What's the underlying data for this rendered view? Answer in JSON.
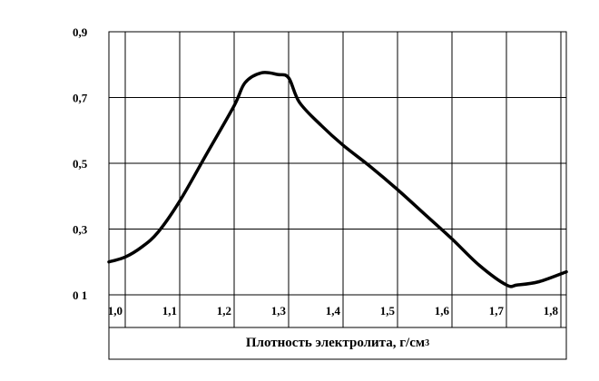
{
  "chart_data": {
    "type": "line",
    "xlabel": "Плотность электролита, г/см",
    "xlabel_sup": "3",
    "ylabel": "",
    "xlim": [
      0.97,
      1.81
    ],
    "ylim": [
      0.1,
      0.9
    ],
    "x_ticks": [
      {
        "value": 1.0,
        "label": "1,0"
      },
      {
        "value": 1.1,
        "label": "1,1"
      },
      {
        "value": 1.2,
        "label": "1,2"
      },
      {
        "value": 1.3,
        "label": "1,3"
      },
      {
        "value": 1.4,
        "label": "1,4"
      },
      {
        "value": 1.5,
        "label": "1,5"
      },
      {
        "value": 1.6,
        "label": "1,6"
      },
      {
        "value": 1.7,
        "label": "1,7"
      },
      {
        "value": 1.8,
        "label": "1,8"
      }
    ],
    "y_ticks": [
      {
        "value": 0.1,
        "label": "0 1"
      },
      {
        "value": 0.3,
        "label": "0,3"
      },
      {
        "value": 0.5,
        "label": "0,5"
      },
      {
        "value": 0.7,
        "label": "0,7"
      },
      {
        "value": 0.9,
        "label": "0,9"
      }
    ],
    "grid": true,
    "series": [
      {
        "x": [
          0.97,
          1.0,
          1.03,
          1.06,
          1.1,
          1.15,
          1.2,
          1.22,
          1.25,
          1.28,
          1.3,
          1.32,
          1.36,
          1.4,
          1.45,
          1.5,
          1.55,
          1.6,
          1.65,
          1.7,
          1.72,
          1.76,
          1.81
        ],
        "y": [
          0.2,
          0.215,
          0.245,
          0.29,
          0.385,
          0.53,
          0.675,
          0.745,
          0.775,
          0.77,
          0.76,
          0.685,
          0.615,
          0.555,
          0.49,
          0.42,
          0.345,
          0.27,
          0.19,
          0.13,
          0.13,
          0.14,
          0.17
        ]
      }
    ]
  }
}
